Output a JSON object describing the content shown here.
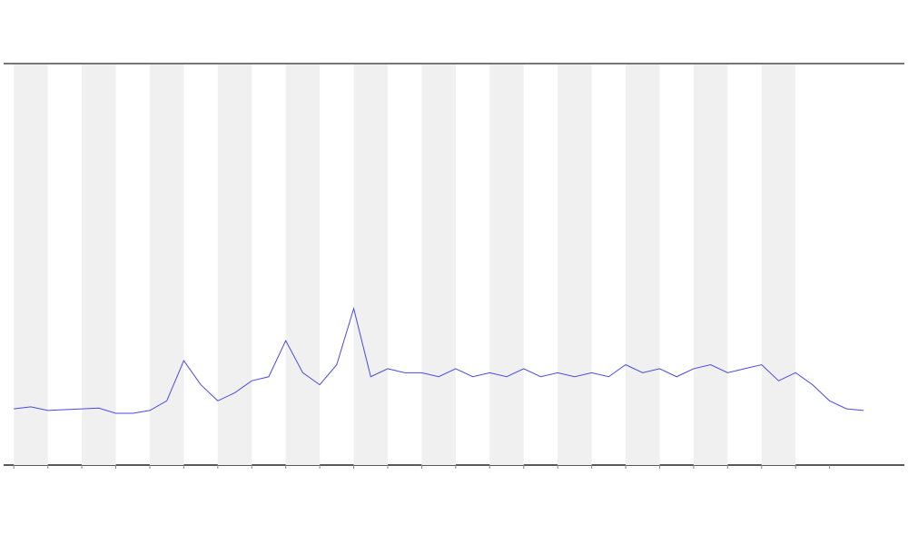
{
  "chart_data": {
    "type": "line",
    "x": [
      0,
      0.5,
      1,
      1.5,
      2,
      2.5,
      3,
      3.5,
      4,
      4.5,
      5,
      5.5,
      6,
      6.5,
      7,
      7.5,
      8,
      8.5,
      9,
      9.5,
      10,
      10.5,
      11,
      11.5,
      12,
      12.5,
      13,
      13.5,
      14,
      14.5,
      15,
      15.5,
      16,
      16.5,
      17,
      17.5,
      18,
      18.5,
      19,
      19.5,
      20,
      20.5,
      21,
      21.5,
      22,
      22.5,
      23,
      23.5,
      24,
      24.5,
      25
    ],
    "series": [
      {
        "color": "#4a4ae6",
        "values": [
          14,
          14.5,
          13.6,
          13.8,
          14,
          14.2,
          12.9,
          12.9,
          13.6,
          16,
          26,
          20,
          16,
          18,
          21,
          22,
          31,
          23,
          20,
          25,
          39,
          22,
          24,
          23,
          23,
          22,
          24,
          22,
          23,
          22,
          24,
          22,
          23,
          22,
          23,
          22,
          25,
          23,
          24,
          22,
          24,
          25,
          23,
          24,
          25,
          21,
          23,
          20,
          16,
          14,
          13.6
        ]
      }
    ],
    "xlim": [
      -0.3,
      26.2
    ],
    "ylim": [
      0,
      100
    ],
    "xticks": [
      0,
      1,
      2,
      3,
      4,
      5,
      6,
      7,
      8,
      9,
      10,
      11,
      12,
      13,
      14,
      15,
      16,
      17,
      18,
      19,
      20,
      21,
      22,
      23,
      24
    ],
    "shaded_bands": [
      [
        0,
        1
      ],
      [
        2,
        3
      ],
      [
        4,
        5
      ],
      [
        6,
        7
      ],
      [
        8,
        9
      ],
      [
        10,
        11
      ],
      [
        12,
        13
      ],
      [
        14,
        15
      ],
      [
        16,
        17
      ],
      [
        18,
        19
      ],
      [
        20,
        21
      ],
      [
        22,
        23
      ]
    ],
    "band_color": "#f0f0f0"
  }
}
